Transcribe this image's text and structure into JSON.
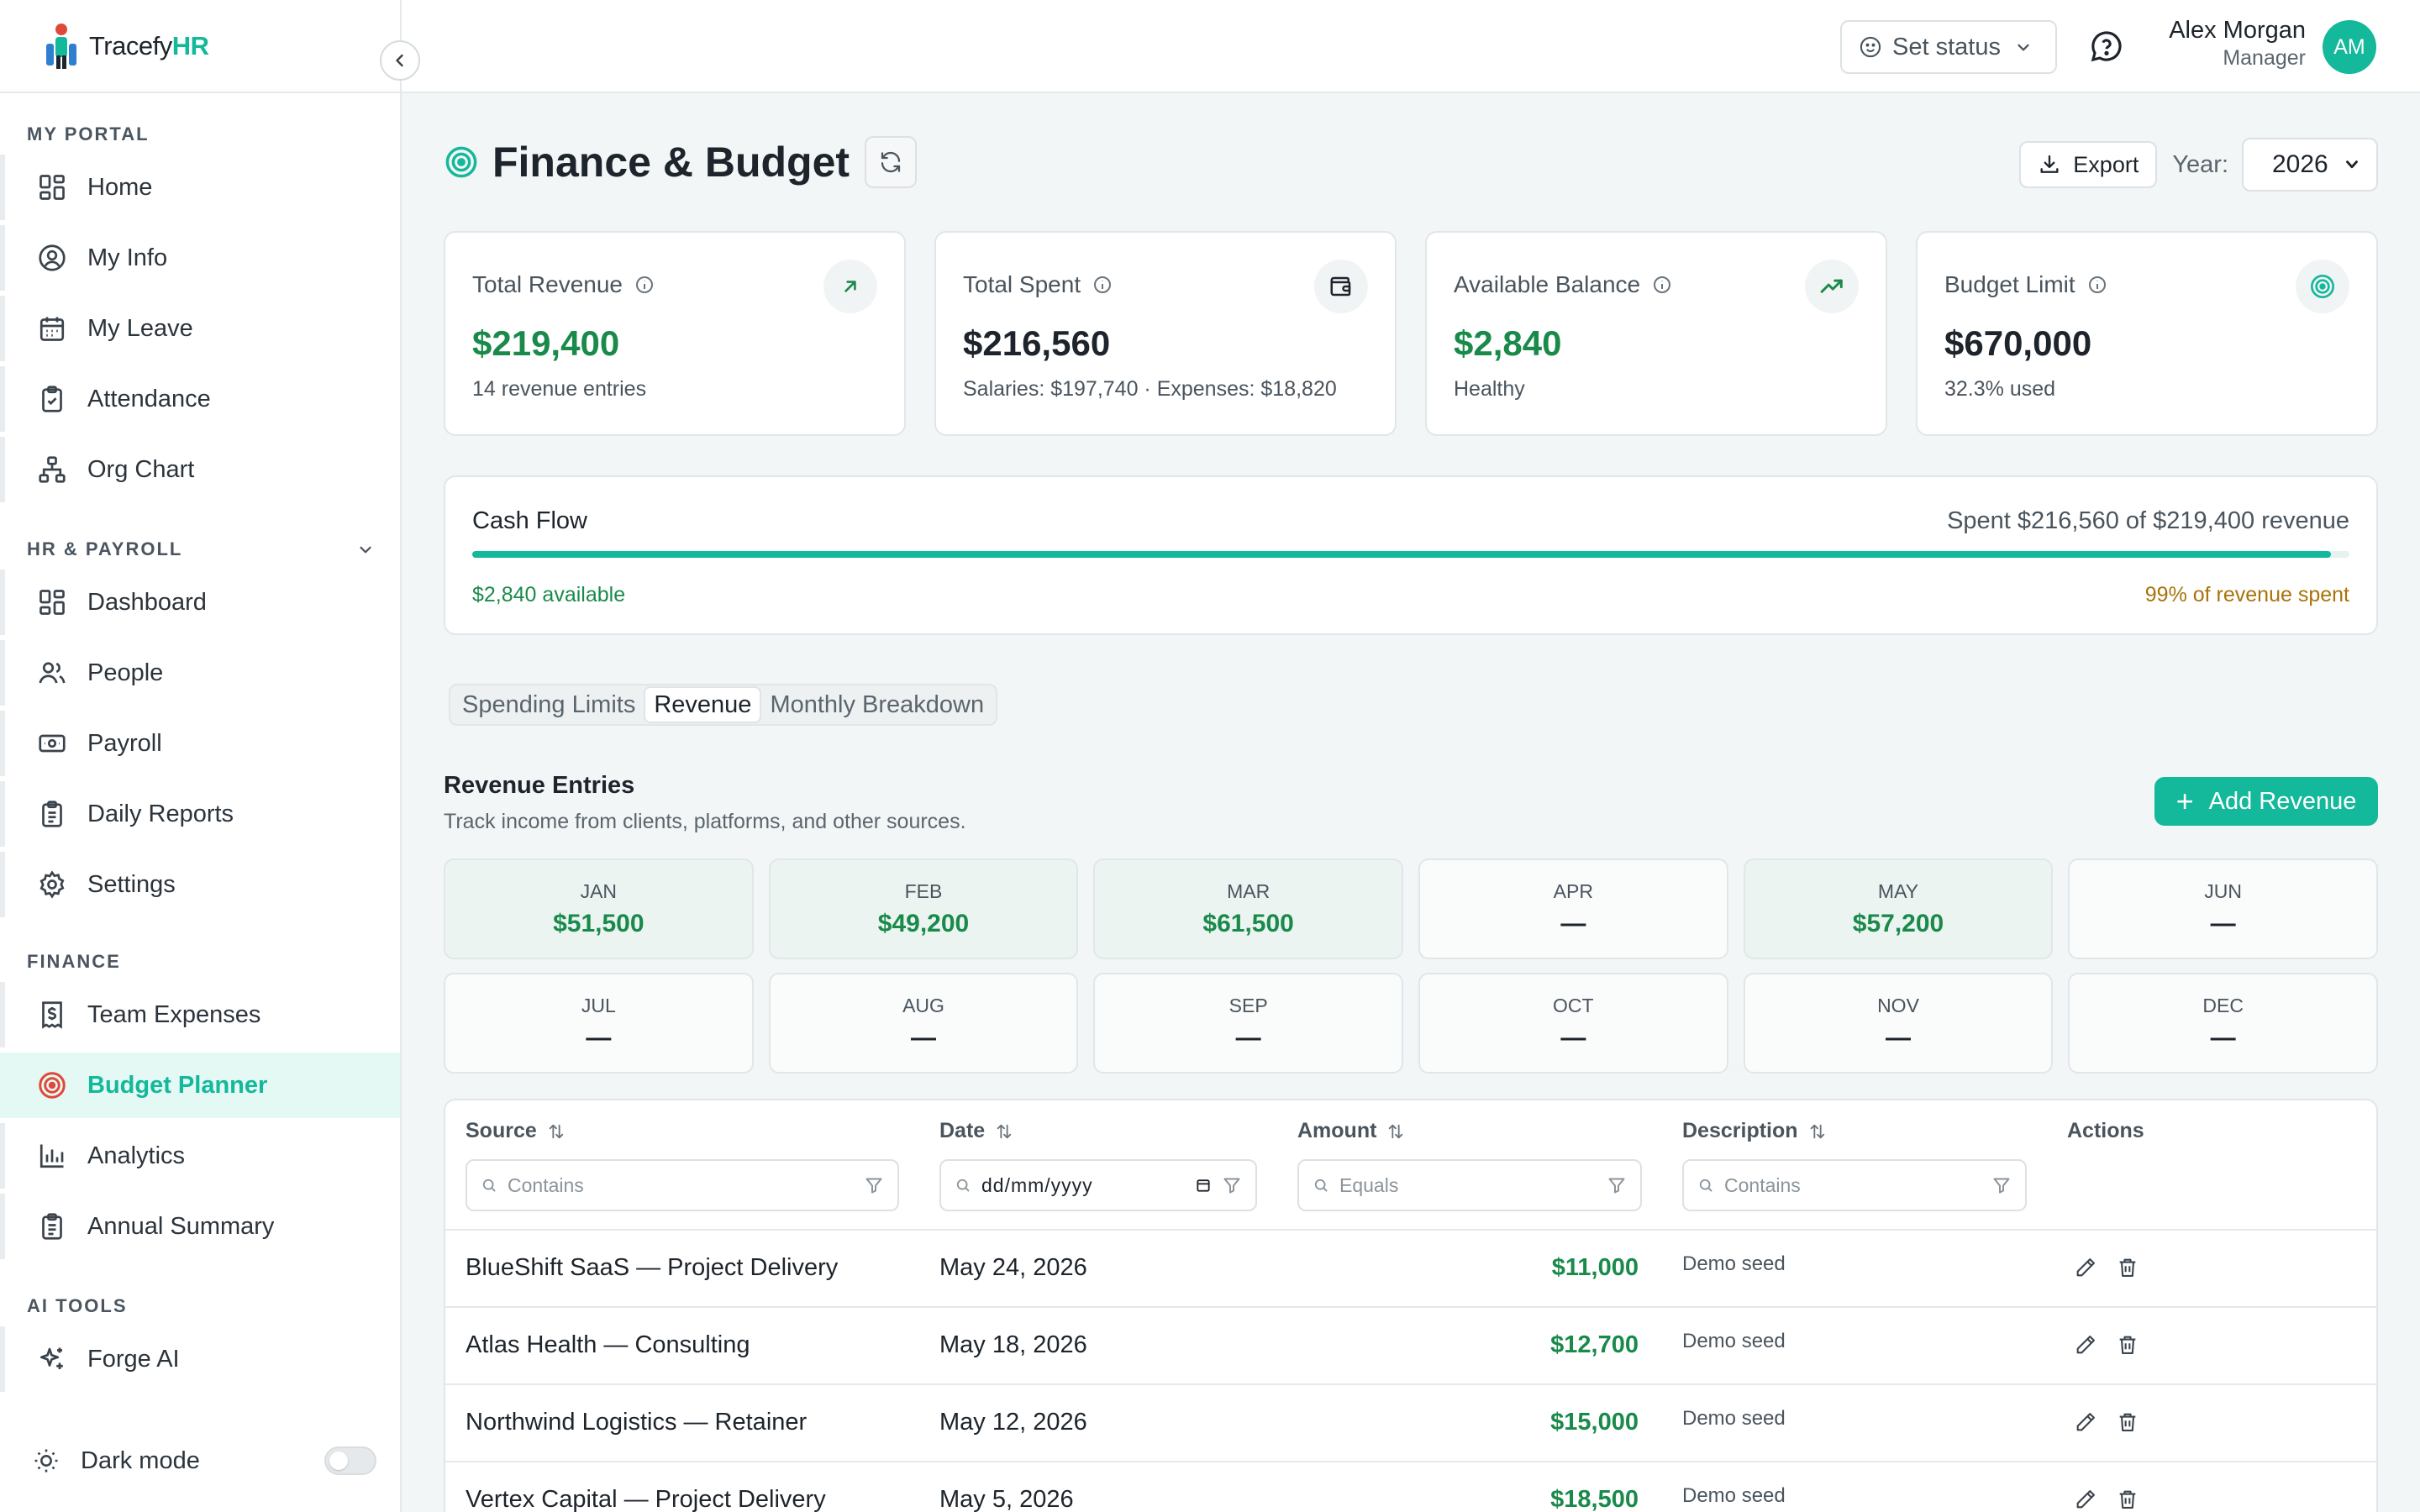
{
  "app": {
    "logo_plain": "Tracefy",
    "logo_accent": "HR"
  },
  "sidebar": {
    "sections": [
      {
        "title": "MY PORTAL",
        "items": [
          {
            "label": "Home",
            "icon": "home-grid-icon"
          },
          {
            "label": "My Info",
            "icon": "user-circle-icon"
          },
          {
            "label": "My Leave",
            "icon": "calendar-icon"
          },
          {
            "label": "Attendance",
            "icon": "clipboard-check-icon"
          },
          {
            "label": "Org Chart",
            "icon": "org-chart-icon"
          }
        ]
      },
      {
        "title": "HR & PAYROLL",
        "items": [
          {
            "label": "Dashboard",
            "icon": "dashboard-grid-icon"
          },
          {
            "label": "People",
            "icon": "people-icon"
          },
          {
            "label": "Payroll",
            "icon": "banknote-icon"
          },
          {
            "label": "Daily Reports",
            "icon": "clipboard-list-icon"
          },
          {
            "label": "Settings",
            "icon": "gear-icon"
          }
        ]
      },
      {
        "title": "FINANCE",
        "items": [
          {
            "label": "Team Expenses",
            "icon": "receipt-dollar-icon"
          },
          {
            "label": "Budget Planner",
            "icon": "target-icon"
          },
          {
            "label": "Analytics",
            "icon": "bar-chart-icon"
          },
          {
            "label": "Annual Summary",
            "icon": "clipboard-list-icon"
          }
        ]
      },
      {
        "title": "AI TOOLS",
        "items": [
          {
            "label": "Forge AI",
            "icon": "sparkles-icon"
          }
        ]
      }
    ],
    "dark_mode_label": "Dark mode",
    "dark_mode_on": false
  },
  "topbar": {
    "status_label": "Set status",
    "user_name": "Alex Morgan",
    "user_role": "Manager",
    "avatar_initials": "AM"
  },
  "page": {
    "title": "Finance & Budget",
    "export_label": "Export",
    "year_label": "Year:",
    "year_value": "2026"
  },
  "cards": [
    {
      "label": "Total Revenue",
      "value": "$219,400",
      "sub": "14 revenue entries",
      "value_color": "#1a8a4a",
      "icon": "arrow-up-right-icon"
    },
    {
      "label": "Total Spent",
      "value": "$216,560",
      "sub": "Salaries: $197,740 · Expenses: $18,820",
      "value_color": "#1d242b",
      "icon": "wallet-icon"
    },
    {
      "label": "Available Balance",
      "value": "$2,840",
      "sub": "Healthy",
      "value_color": "#1a8a4a",
      "icon": "trending-up-icon"
    },
    {
      "label": "Budget Limit",
      "value": "$670,000",
      "sub": "32.3% used",
      "value_color": "#1d242b",
      "icon": "target-icon"
    }
  ],
  "cashflow": {
    "title": "Cash Flow",
    "summary": "Spent $216,560 of $219,400 revenue",
    "spent_fraction": 0.99,
    "available_text": "$2,840 available",
    "percent_text": "99% of revenue spent"
  },
  "tabs": [
    {
      "label": "Spending Limits",
      "active": false
    },
    {
      "label": "Revenue",
      "active": true
    },
    {
      "label": "Monthly Breakdown",
      "active": false
    }
  ],
  "revenue": {
    "title": "Revenue Entries",
    "subtitle": "Track income from clients, platforms, and other sources.",
    "add_label": "Add Revenue",
    "months": [
      {
        "name": "JAN",
        "value": "$51,500"
      },
      {
        "name": "FEB",
        "value": "$49,200"
      },
      {
        "name": "MAR",
        "value": "$61,500"
      },
      {
        "name": "APR",
        "value": "—"
      },
      {
        "name": "MAY",
        "value": "$57,200"
      },
      {
        "name": "JUN",
        "value": "—"
      },
      {
        "name": "JUL",
        "value": "—"
      },
      {
        "name": "AUG",
        "value": "—"
      },
      {
        "name": "SEP",
        "value": "—"
      },
      {
        "name": "OCT",
        "value": "—"
      },
      {
        "name": "NOV",
        "value": "—"
      },
      {
        "name": "DEC",
        "value": "—"
      }
    ]
  },
  "table": {
    "columns": [
      "Source",
      "Date",
      "Amount",
      "Description",
      "Actions"
    ],
    "filters": {
      "source_placeholder": "Contains",
      "date_placeholder": "dd/mm/yyyy",
      "amount_placeholder": "Equals",
      "description_placeholder": "Contains"
    },
    "rows": [
      {
        "source": "BlueShift SaaS — Project Delivery",
        "date": "May 24, 2026",
        "amount": "$11,000",
        "description": "Demo seed"
      },
      {
        "source": "Atlas Health — Consulting",
        "date": "May 18, 2026",
        "amount": "$12,700",
        "description": "Demo seed"
      },
      {
        "source": "Northwind Logistics — Retainer",
        "date": "May 12, 2026",
        "amount": "$15,000",
        "description": "Demo seed"
      },
      {
        "source": "Vertex Capital — Project Delivery",
        "date": "May 5, 2026",
        "amount": "$18,500",
        "description": "Demo seed"
      }
    ]
  },
  "colors": {
    "accent": "#14b89a",
    "positive": "#1a8a4a",
    "warning": "#a8730b"
  }
}
